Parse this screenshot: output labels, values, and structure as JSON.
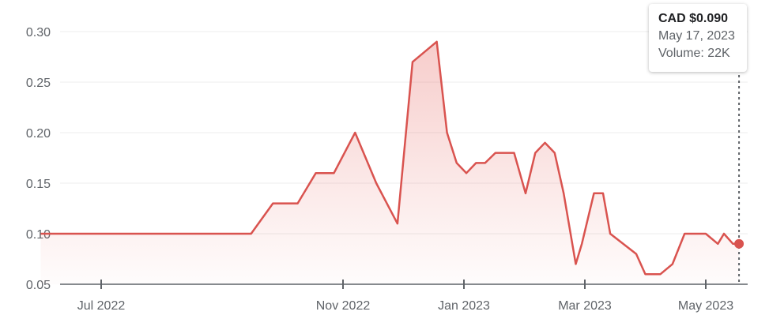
{
  "chart_data": {
    "type": "area",
    "currency": "CAD",
    "color": "#d9534f",
    "y_ticks": [
      0.05,
      0.1,
      0.15,
      0.2,
      0.25,
      0.3
    ],
    "y_tick_labels": [
      "0.05",
      "0.10",
      "0.15",
      "0.20",
      "0.25",
      "0.30"
    ],
    "x_ticks": [
      {
        "label": "Jul 2022",
        "t": 1.0
      },
      {
        "label": "Nov 2022",
        "t": 5.0
      },
      {
        "label": "Jan 2023",
        "t": 7.0
      },
      {
        "label": "Mar 2023",
        "t": 9.0
      },
      {
        "label": "May 2023",
        "t": 11.0
      }
    ],
    "ylim": [
      0.05,
      0.3
    ],
    "xlim": [
      0.0,
      11.55
    ],
    "grid": true,
    "values": [
      [
        0.0,
        0.1
      ],
      [
        0.5,
        0.1
      ],
      [
        1.0,
        0.1
      ],
      [
        1.5,
        0.1
      ],
      [
        2.0,
        0.1
      ],
      [
        3.48,
        0.1
      ],
      [
        3.84,
        0.13
      ],
      [
        4.25,
        0.13
      ],
      [
        4.55,
        0.16
      ],
      [
        4.85,
        0.16
      ],
      [
        5.2,
        0.2
      ],
      [
        5.55,
        0.15
      ],
      [
        5.9,
        0.11
      ],
      [
        6.15,
        0.27
      ],
      [
        6.55,
        0.29
      ],
      [
        6.72,
        0.2
      ],
      [
        6.88,
        0.17
      ],
      [
        7.04,
        0.16
      ],
      [
        7.2,
        0.17
      ],
      [
        7.35,
        0.17
      ],
      [
        7.52,
        0.18
      ],
      [
        7.68,
        0.18
      ],
      [
        7.83,
        0.18
      ],
      [
        8.02,
        0.14
      ],
      [
        8.18,
        0.18
      ],
      [
        8.34,
        0.19
      ],
      [
        8.5,
        0.18
      ],
      [
        8.65,
        0.14
      ],
      [
        8.85,
        0.07
      ],
      [
        8.95,
        0.09
      ],
      [
        9.15,
        0.14
      ],
      [
        9.3,
        0.14
      ],
      [
        9.42,
        0.1
      ],
      [
        9.85,
        0.08
      ],
      [
        10.0,
        0.06
      ],
      [
        10.25,
        0.06
      ],
      [
        10.45,
        0.07
      ],
      [
        10.65,
        0.1
      ],
      [
        11.0,
        0.1
      ],
      [
        11.2,
        0.09
      ],
      [
        11.3,
        0.1
      ],
      [
        11.45,
        0.09
      ],
      [
        11.55,
        0.09
      ]
    ],
    "tooltip": {
      "price": "CAD $0.090",
      "date": "May 17, 2023",
      "volume": "Volume: 22K"
    }
  }
}
